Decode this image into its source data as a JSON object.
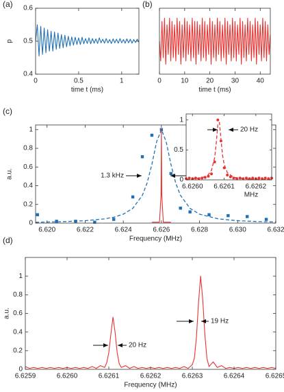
{
  "chart_data": [
    {
      "type": "line",
      "label": "(a)",
      "xlabel": "time t (ms)",
      "ylabel": "p",
      "xlim": [
        0,
        1.2
      ],
      "ylim": [
        0.4,
        0.6
      ],
      "xticks": [
        0,
        0.5,
        1
      ],
      "yticks": [
        0.4,
        0.5,
        0.6
      ],
      "series": [
        {
          "style": "line",
          "color": "#1f6fb4",
          "x": [
            0,
            0.02,
            0.04,
            0.06,
            0.08,
            0.1,
            0.12,
            0.14,
            0.16,
            0.18,
            0.2,
            0.22,
            0.24,
            0.26,
            0.28,
            0.3,
            0.32,
            0.34,
            0.36,
            0.38,
            0.4,
            0.42,
            0.44,
            0.46,
            0.48,
            0.5,
            0.52,
            0.54,
            0.56,
            0.58,
            0.6,
            0.62,
            0.64,
            0.66,
            0.68,
            0.7,
            0.72,
            0.74,
            0.76,
            0.78,
            0.8,
            0.82,
            0.84,
            0.86,
            0.88,
            0.9,
            0.92,
            0.94,
            0.96,
            0.98,
            1,
            1.02,
            1.04,
            1.06,
            1.08,
            1.1,
            1.12,
            1.14,
            1.16,
            1.18,
            1.2
          ],
          "values": [
            0.5,
            0.55,
            0.455,
            0.545,
            0.46,
            0.54,
            0.465,
            0.535,
            0.47,
            0.53,
            0.47,
            0.528,
            0.475,
            0.525,
            0.478,
            0.52,
            0.48,
            0.518,
            0.483,
            0.515,
            0.486,
            0.513,
            0.488,
            0.512,
            0.49,
            0.51,
            0.49,
            0.512,
            0.492,
            0.508,
            0.493,
            0.51,
            0.492,
            0.508,
            0.494,
            0.507,
            0.493,
            0.51,
            0.495,
            0.506,
            0.494,
            0.508,
            0.495,
            0.505,
            0.493,
            0.507,
            0.495,
            0.506,
            0.494,
            0.508,
            0.495,
            0.505,
            0.494,
            0.507,
            0.495,
            0.506,
            0.494,
            0.505,
            0.496,
            0.506,
            0.497
          ]
        }
      ]
    },
    {
      "type": "line",
      "label": "(b)",
      "xlabel": "time t (ms)",
      "xlim": [
        0,
        44
      ],
      "ylim": [
        0.4,
        0.6
      ],
      "xticks": [
        0,
        10,
        20,
        30,
        40
      ],
      "series": [
        {
          "style": "line",
          "color": "#e8312f",
          "x": [
            0,
            0.5,
            1,
            1.5,
            2,
            2.5,
            3,
            3.5,
            4,
            4.5,
            5,
            5.5,
            6,
            6.5,
            7,
            7.5,
            8,
            8.5,
            9,
            9.5,
            10,
            10.5,
            11,
            11.5,
            12,
            12.5,
            13,
            13.5,
            14,
            14.5,
            15,
            15.5,
            16,
            16.5,
            17,
            17.5,
            18,
            18.5,
            19,
            19.5,
            20,
            20.5,
            21,
            21.5,
            22,
            22.5,
            23,
            23.5,
            24,
            24.5,
            25,
            25.5,
            26,
            26.5,
            27,
            27.5,
            28,
            28.5,
            29,
            29.5,
            30,
            30.5,
            31,
            31.5,
            32,
            32.5,
            33,
            33.5,
            34,
            34.5,
            35,
            35.5,
            36,
            36.5,
            37,
            37.5,
            38,
            38.5,
            39,
            39.5,
            40,
            40.5,
            41,
            41.5,
            42,
            42.5,
            43,
            43.5,
            44
          ],
          "values": [
            0.5,
            0.44,
            0.56,
            0.45,
            0.57,
            0.43,
            0.55,
            0.46,
            0.57,
            0.44,
            0.56,
            0.45,
            0.55,
            0.44,
            0.57,
            0.46,
            0.56,
            0.43,
            0.55,
            0.45,
            0.57,
            0.44,
            0.56,
            0.46,
            0.55,
            0.44,
            0.57,
            0.45,
            0.56,
            0.43,
            0.56,
            0.46,
            0.55,
            0.44,
            0.57,
            0.45,
            0.56,
            0.44,
            0.55,
            0.46,
            0.57,
            0.43,
            0.56,
            0.45,
            0.55,
            0.44,
            0.57,
            0.46,
            0.56,
            0.44,
            0.55,
            0.45,
            0.57,
            0.43,
            0.56,
            0.46,
            0.55,
            0.44,
            0.57,
            0.45,
            0.56,
            0.44,
            0.55,
            0.46,
            0.57,
            0.43,
            0.56,
            0.45,
            0.55,
            0.44,
            0.57,
            0.46,
            0.56,
            0.44,
            0.55,
            0.45,
            0.57,
            0.43,
            0.56,
            0.46,
            0.55,
            0.44,
            0.57,
            0.45,
            0.56,
            0.44,
            0.55,
            0.46,
            0.52
          ]
        }
      ]
    },
    {
      "type": "line",
      "label": "(c)",
      "xlabel": "Frequency (MHz)",
      "ylabel": "a.u.",
      "annotations": [
        "1.3 kHz"
      ],
      "xlim": [
        6.6194,
        6.632
      ],
      "ylim": [
        0,
        1.05
      ],
      "xticks": [
        {
          "value": 6.62,
          "label": "6.620"
        },
        {
          "value": 6.622,
          "label": "6.622"
        },
        {
          "value": 6.624,
          "label": "6.624"
        },
        {
          "value": 6.626,
          "label": "6.626"
        },
        {
          "value": 6.628,
          "label": "6.628"
        },
        {
          "value": 6.63,
          "label": "6.630"
        },
        {
          "value": 6.632,
          "label": "6.632"
        }
      ],
      "yticks": [
        0,
        0.2,
        0.4,
        0.6,
        0.8,
        1
      ],
      "series": [
        {
          "style": "dashed",
          "color": "#1f6fb4",
          "x": [
            6.6194,
            6.6204,
            6.6214,
            6.622,
            6.623,
            6.6235,
            6.624,
            6.6245,
            6.625,
            6.62525,
            6.6255,
            6.62575,
            6.626,
            6.62625,
            6.6265,
            6.62675,
            6.627,
            6.6275,
            6.628,
            6.629,
            6.63,
            6.631,
            6.632
          ],
          "values": [
            0.0096,
            0.013,
            0.0196,
            0.026,
            0.045,
            0.063,
            0.0955,
            0.158,
            0.297,
            0.429,
            0.628,
            0.871,
            1,
            0.871,
            0.628,
            0.429,
            0.297,
            0.158,
            0.0955,
            0.045,
            0.026,
            0.017,
            0.0116
          ]
        },
        {
          "style": "square",
          "color": "#1f6fb4",
          "x": [
            6.6195,
            6.6205,
            6.6215,
            6.6225,
            6.6235,
            6.6245,
            6.625,
            6.6255,
            6.626,
            6.6265,
            6.627,
            6.6275,
            6.6285,
            6.6295,
            6.6305,
            6.6315
          ],
          "values": [
            0.09,
            0.02,
            0.02,
            0.01,
            0.04,
            0.28,
            0.71,
            0.94,
            1,
            0.53,
            0.16,
            0.12,
            0.09,
            0.08,
            0.07,
            0.04
          ]
        },
        {
          "style": "line",
          "color": "#e8312f",
          "x": [
            6.6255,
            6.6259,
            6.62598,
            6.626,
            6.62602,
            6.6261,
            6.6265
          ],
          "values": [
            0.01,
            0.01,
            0.3,
            1,
            0.3,
            0.01,
            0.01
          ]
        }
      ]
    },
    {
      "type": "line",
      "inset": true,
      "xlabel": "MHz",
      "annotations": [
        "20 Hz"
      ],
      "xlim": [
        6.62598,
        6.62625
      ],
      "ylim": [
        0,
        1.1
      ],
      "xticks": [
        {
          "value": 6.626,
          "label": "6.6260"
        },
        {
          "value": 6.6261,
          "label": "6.6261"
        },
        {
          "value": 6.6262,
          "label": "6.6262"
        }
      ],
      "yticks": [
        0,
        0.5,
        1
      ],
      "series": [
        {
          "style": "dashed",
          "color": "#e8312f",
          "x": [
            6.62598,
            6.62603,
            6.62605,
            6.62606,
            6.62607,
            6.626075,
            6.62608,
            6.626085,
            6.62609,
            6.626095,
            6.6261,
            6.62611,
            6.62613,
            6.62618,
            6.62625
          ],
          "values": [
            0.009,
            0.034,
            0.084,
            0.16,
            0.37,
            0.61,
            0.92,
            0.96,
            0.67,
            0.41,
            0.26,
            0.12,
            0.043,
            0.011,
            0.004
          ]
        },
        {
          "style": "dot",
          "color": "#e8312f",
          "x": [
            6.62598,
            6.62599,
            6.626,
            6.62601,
            6.62602,
            6.62603,
            6.62604,
            6.62605,
            6.62606,
            6.62607,
            6.62608,
            6.62609,
            6.6261,
            6.62611,
            6.62612,
            6.62613,
            6.62614,
            6.62615,
            6.62616,
            6.62617,
            6.62618,
            6.62619,
            6.6262,
            6.62621,
            6.62622,
            6.62623,
            6.62624,
            6.62625
          ],
          "values": [
            0.02,
            0.03,
            0.02,
            0.03,
            0.02,
            0.03,
            0.04,
            0.06,
            0.1,
            0.3,
            1,
            0.65,
            0.2,
            0.08,
            0.05,
            0.03,
            0.02,
            0.03,
            0.02,
            0.03,
            0.02,
            0.03,
            0.02,
            0.03,
            0.02,
            0.03,
            0.02,
            0.03
          ]
        }
      ]
    },
    {
      "type": "line",
      "label": "(d)",
      "xlabel": "Frequency (MHz)",
      "ylabel": "a.u.",
      "annotations": [
        "20 Hz",
        "19 Hz"
      ],
      "xlim": [
        6.6259,
        6.6265
      ],
      "ylim": [
        0,
        1.2
      ],
      "xticks": [
        6.6259,
        {
          "value": 6.626,
          "label": "6.6260"
        },
        6.6261,
        6.6262,
        6.6263,
        6.6264,
        6.6265
      ],
      "yticks": [
        0,
        0.2,
        0.4,
        0.6,
        0.8,
        1
      ],
      "series": [
        {
          "style": "line",
          "color": "#e8312f",
          "x": [
            6.6259,
            6.62591,
            6.62592,
            6.62593,
            6.62594,
            6.62595,
            6.62596,
            6.62597,
            6.62598,
            6.62599,
            6.626,
            6.62601,
            6.62602,
            6.62603,
            6.62604,
            6.62605,
            6.62606,
            6.62607,
            6.62608,
            6.62609,
            6.626095,
            6.6261,
            6.626105,
            6.62611,
            6.626115,
            6.62612,
            6.626125,
            6.62613,
            6.62614,
            6.62615,
            6.62616,
            6.62617,
            6.62618,
            6.62619,
            6.6262,
            6.62621,
            6.62622,
            6.62623,
            6.62624,
            6.62625,
            6.62626,
            6.62627,
            6.62628,
            6.62629,
            6.6263,
            6.626305,
            6.62631,
            6.626315,
            6.62632,
            6.626325,
            6.62633,
            6.626335,
            6.62634,
            6.62635,
            6.62636,
            6.62637,
            6.62638,
            6.62639,
            6.6264,
            6.62641,
            6.62642,
            6.62643,
            6.62644,
            6.62645,
            6.62646,
            6.62647,
            6.62648,
            6.62649,
            6.6265
          ],
          "values": [
            0.03,
            0.01,
            0.02,
            0.01,
            0.02,
            0.01,
            0.02,
            0.01,
            0.02,
            0.01,
            0.02,
            0.01,
            0.02,
            0.01,
            0.02,
            0.01,
            0.03,
            0.01,
            0.04,
            0.02,
            0.07,
            0.18,
            0.38,
            0.56,
            0.4,
            0.18,
            0.06,
            0.02,
            0.04,
            0.01,
            0.03,
            0.01,
            0.02,
            0.01,
            0.02,
            0.01,
            0.02,
            0.01,
            0.02,
            0.01,
            0.02,
            0.01,
            0.03,
            0.01,
            0.05,
            0.12,
            0.35,
            0.72,
            1,
            0.75,
            0.38,
            0.12,
            0.03,
            0.08,
            0.02,
            0.04,
            0.01,
            0.02,
            0.01,
            0.02,
            0.01,
            0.02,
            0.01,
            0.02,
            0.01,
            0.02,
            0.01,
            0.02,
            0.01
          ]
        }
      ]
    }
  ]
}
